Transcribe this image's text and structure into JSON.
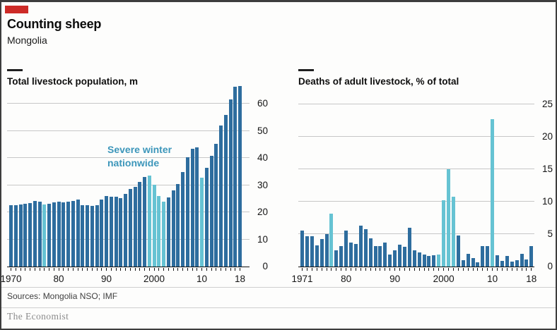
{
  "header": {
    "title": "Counting sheep",
    "subtitle": "Mongolia"
  },
  "footer": {
    "sources": "Sources: Mongolia NSO; IMF",
    "brand": "The Economist"
  },
  "colors": {
    "accent_red": "#cd2b27",
    "bar_dark": "#2e6d9e",
    "bar_light": "#66c3d3",
    "annotation_text": "#3c96ba",
    "gridline": "#c7c7c7",
    "axis": "#111111"
  },
  "chart_data": [
    {
      "type": "bar",
      "title": "Total livestock population, m",
      "ylabel": "m",
      "ylim": [
        0,
        66.5
      ],
      "yticks": [
        0,
        10,
        20,
        30,
        40,
        50,
        60
      ],
      "x_start_year": 1970,
      "x": [
        1970,
        1971,
        1972,
        1973,
        1974,
        1975,
        1976,
        1977,
        1978,
        1979,
        1980,
        1981,
        1982,
        1983,
        1984,
        1985,
        1986,
        1987,
        1988,
        1989,
        1990,
        1991,
        1992,
        1993,
        1994,
        1995,
        1996,
        1997,
        1998,
        1999,
        2000,
        2001,
        2002,
        2003,
        2004,
        2005,
        2006,
        2007,
        2008,
        2009,
        2010,
        2011,
        2012,
        2013,
        2014,
        2015,
        2016,
        2017,
        2018
      ],
      "values": [
        22.6,
        22.6,
        22.9,
        23.1,
        23.4,
        24.1,
        23.8,
        22.8,
        23.2,
        23.7,
        23.8,
        23.7,
        24.0,
        24.2,
        24.6,
        22.6,
        22.5,
        22.4,
        22.6,
        24.7,
        25.9,
        25.6,
        25.7,
        25.2,
        26.8,
        28.6,
        29.3,
        31.3,
        32.9,
        33.6,
        30.2,
        26.1,
        23.9,
        25.4,
        28.0,
        30.4,
        34.8,
        40.3,
        43.3,
        44.0,
        32.7,
        36.3,
        40.9,
        45.1,
        51.9,
        55.9,
        61.5,
        66.2,
        66.5
      ],
      "severe_winter_years": [
        1977,
        1999,
        2000,
        2001,
        2002,
        2010
      ],
      "xtick_labels": [
        {
          "label": "1970",
          "year": 1970
        },
        {
          "label": "80",
          "year": 1980
        },
        {
          "label": "90",
          "year": 1990
        },
        {
          "label": "2000",
          "year": 2000
        },
        {
          "label": "10",
          "year": 2010
        },
        {
          "label": "18",
          "year": 2018
        }
      ],
      "annotation": {
        "lines": [
          "Severe winter",
          "nationwide"
        ]
      },
      "legend_note": "light bars mark severe winter nationwide",
      "grid": true
    },
    {
      "type": "bar",
      "title": "Deaths of adult livestock, % of total",
      "ylabel": "% of total",
      "ylim": [
        0,
        25
      ],
      "yticks": [
        0,
        5,
        10,
        15,
        20,
        25
      ],
      "x_start_year": 1971,
      "x": [
        1971,
        1972,
        1973,
        1974,
        1975,
        1976,
        1977,
        1978,
        1979,
        1980,
        1981,
        1982,
        1983,
        1984,
        1985,
        1986,
        1987,
        1988,
        1989,
        1990,
        1991,
        1992,
        1993,
        1994,
        1995,
        1996,
        1997,
        1998,
        1999,
        2000,
        2001,
        2002,
        2003,
        2004,
        2005,
        2006,
        2007,
        2008,
        2009,
        2010,
        2011,
        2012,
        2013,
        2014,
        2015,
        2016,
        2017,
        2018
      ],
      "values": [
        5.5,
        4.7,
        4.7,
        3.3,
        4.2,
        5.0,
        8.1,
        2.5,
        3.1,
        5.5,
        3.7,
        3.5,
        6.3,
        5.8,
        4.4,
        3.2,
        3.1,
        3.7,
        1.8,
        2.5,
        3.4,
        3.0,
        6.0,
        2.5,
        2.2,
        1.8,
        1.6,
        1.7,
        1.8,
        10.2,
        15.0,
        10.8,
        4.8,
        1.0,
        2.0,
        1.3,
        0.7,
        3.2,
        3.1,
        22.7,
        1.7,
        0.9,
        1.6,
        0.8,
        1.0,
        2.0,
        1.1,
        3.2
      ],
      "severe_winter_years": [
        1977,
        1999,
        2000,
        2001,
        2002,
        2010
      ],
      "xtick_labels": [
        {
          "label": "1971",
          "year": 1971
        },
        {
          "label": "80",
          "year": 1980
        },
        {
          "label": "90",
          "year": 1990
        },
        {
          "label": "2000",
          "year": 2000
        },
        {
          "label": "10",
          "year": 2010
        },
        {
          "label": "18",
          "year": 2018
        }
      ],
      "grid": true
    }
  ]
}
